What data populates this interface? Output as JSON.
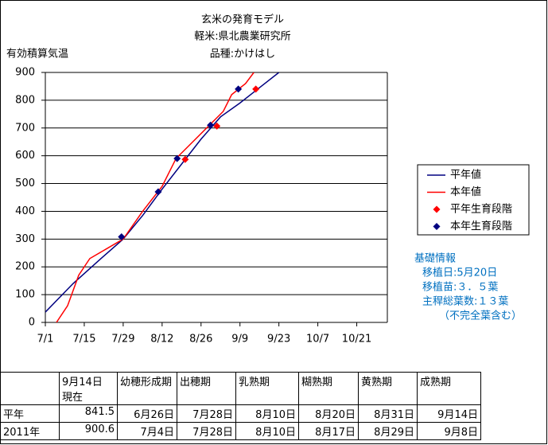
{
  "chart_data": {
    "type": "line",
    "title": "玄米の発育モデル",
    "subtitle": "軽米:県北農業研究所",
    "variety": "品種:かけはし",
    "ylabel": "有効積算気温",
    "xlim": [
      0,
      123
    ],
    "ylim": [
      0,
      900
    ],
    "xticks": [
      {
        "value": 0,
        "label": "7/1"
      },
      {
        "value": 14,
        "label": "7/15"
      },
      {
        "value": 28,
        "label": "7/29"
      },
      {
        "value": 42,
        "label": "8/12"
      },
      {
        "value": 56,
        "label": "8/26"
      },
      {
        "value": 70,
        "label": "9/9"
      },
      {
        "value": 84,
        "label": "9/23"
      },
      {
        "value": 98,
        "label": "10/7"
      },
      {
        "value": 112,
        "label": "10/21"
      }
    ],
    "yticks": [
      0,
      100,
      200,
      300,
      400,
      500,
      600,
      700,
      800,
      900
    ],
    "grid": true,
    "legend": "right",
    "series": [
      {
        "name": "平年値",
        "type": "line",
        "color": "#000080",
        "x": [
          0,
          10,
          20,
          28,
          35,
          42,
          49,
          56,
          63,
          70,
          77,
          84
        ],
        "values": [
          37,
          140,
          230,
          300,
          385,
          480,
          570,
          660,
          740,
          790,
          845,
          900
        ]
      },
      {
        "name": "本年値",
        "type": "line",
        "color": "#ff0000",
        "x": [
          4,
          8,
          12,
          16,
          22,
          28,
          35,
          42,
          47,
          53,
          59,
          64,
          67,
          72,
          75
        ],
        "values": [
          0,
          60,
          170,
          230,
          265,
          300,
          400,
          490,
          590,
          650,
          710,
          760,
          820,
          860,
          900
        ]
      },
      {
        "name": "平年生育段階",
        "type": "scatter",
        "color": "#ff0000",
        "x": [
          50.3,
          61.7,
          75.7
        ],
        "values": [
          587,
          707,
          840
        ]
      },
      {
        "name": "本年生育段階",
        "type": "scatter",
        "color": "#000080",
        "x": [
          27.4,
          40.6,
          47.4,
          59.4,
          69.4
        ],
        "values": [
          308,
          470,
          590,
          710,
          840
        ]
      }
    ],
    "notes": [
      "基礎情報",
      "移植日:5月20日",
      "移植苗:３．５葉",
      "主稈総葉数:１３葉",
      "（不完全葉含む）"
    ]
  },
  "table": {
    "header": [
      "",
      "9月14日\n現在",
      "幼穂形成期",
      "出穂期",
      "乳熟期",
      "糊熟期",
      "黄熟期",
      "成熟期"
    ],
    "rows": [
      [
        "平年",
        "841.5",
        "6月26日",
        "7月28日",
        "8月10日",
        "8月20日",
        "8月31日",
        "9月14日"
      ],
      [
        "2011年",
        "900.6",
        "7月4日",
        "7月28日",
        "8月10日",
        "8月17日",
        "8月29日",
        "9月8日"
      ]
    ]
  }
}
